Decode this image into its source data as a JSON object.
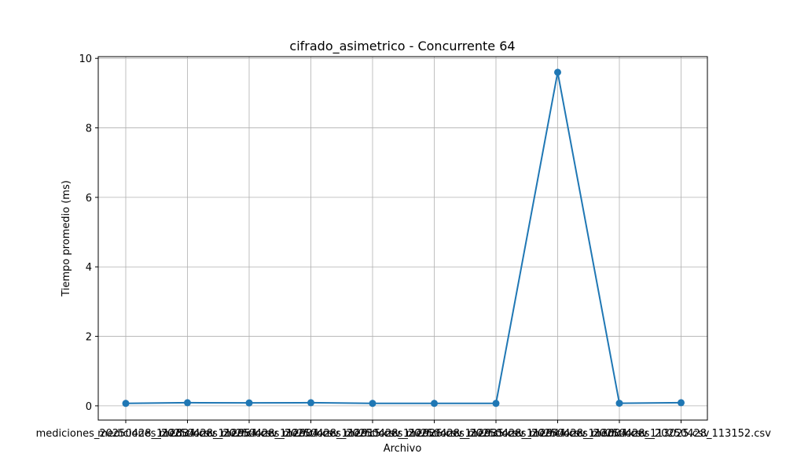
{
  "chart_data": {
    "type": "line",
    "title": "cifrado_asimetrico - Concurrente 64",
    "xlabel": "Archivo",
    "ylabel": "Tiempo promedio (ms)",
    "categories": [
      "mediciones_20250428_112834.csv",
      "mediciones_20250428_112954.csv",
      "mediciones_20250428_112904.csv",
      "mediciones_20250428_112915.csv",
      "mediciones_20250428_112926.csv",
      "mediciones_20250428_112935.csv",
      "mediciones_20250428_112944.csv",
      "mediciones_20250428_113004.csv",
      "mediciones_20250428_113025.csv",
      "mediciones_20250428_113152.csv"
    ],
    "series": [
      {
        "values": [
          0.07,
          0.09,
          0.085,
          0.09,
          0.07,
          0.07,
          0.07,
          9.6,
          0.075,
          0.09
        ],
        "color": "#1f77b4"
      }
    ],
    "ylim": [
      -0.41,
      10.05
    ],
    "yticks": [
      0,
      2,
      4,
      6,
      8,
      10
    ],
    "grid": true,
    "legend": "none",
    "marker": "circle"
  }
}
